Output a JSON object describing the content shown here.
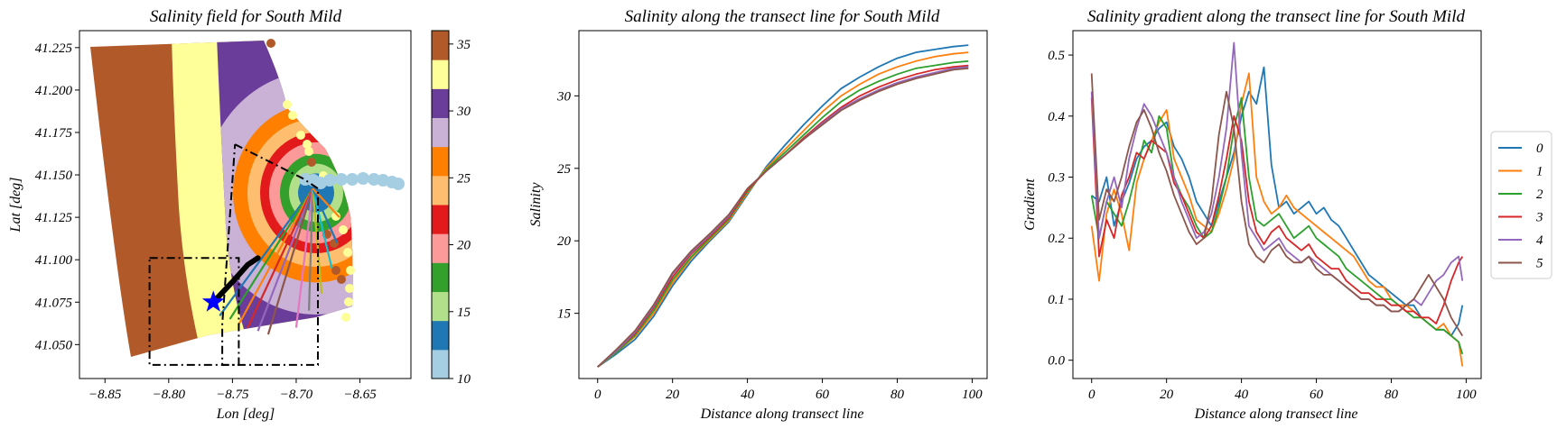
{
  "chart_data": [
    {
      "type": "scatter",
      "title": "Salinity field for South Mild",
      "xlabel": "Lon [deg]",
      "ylabel": "Lat [deg]",
      "xlim": [
        -8.87,
        -8.61
      ],
      "ylim": [
        41.03,
        41.235
      ],
      "xticks": [
        -8.85,
        -8.8,
        -8.75,
        -8.7,
        -8.65
      ],
      "xtick_labels": [
        "−8.85",
        "−8.80",
        "−8.75",
        "−8.70",
        "−8.65"
      ],
      "yticks": [
        41.05,
        41.075,
        41.1,
        41.125,
        41.15,
        41.175,
        41.2,
        41.225
      ],
      "ytick_labels": [
        "41.050",
        "41.075",
        "41.100",
        "41.125",
        "41.150",
        "41.175",
        "41.200",
        "41.225"
      ],
      "colorbar": {
        "range": [
          10,
          36
        ],
        "ticks": [
          10,
          15,
          20,
          25,
          30,
          35
        ],
        "tick_labels": [
          "10",
          "15",
          "20",
          "25",
          "30",
          "35"
        ],
        "colors": [
          "#a6cee3",
          "#1f78b4",
          "#b2df8a",
          "#33a02c",
          "#fb9a99",
          "#e31a1c",
          "#fdbf6f",
          "#ff7f00",
          "#cab2d6",
          "#6a3d9a",
          "#ffff99",
          "#b15928"
        ]
      },
      "star": {
        "lon": -8.765,
        "lat": 41.075,
        "color": "#0000ff"
      },
      "origin": {
        "lon": -8.687,
        "lat": 41.142
      },
      "transect_ends": [
        {
          "lon": -8.76,
          "lat": 41.067,
          "color": "#1f77b4"
        },
        {
          "lon": -8.752,
          "lat": 41.065,
          "color": "#2ca02c"
        },
        {
          "lon": -8.745,
          "lat": 41.062,
          "color": "#ff7f0e"
        },
        {
          "lon": -8.738,
          "lat": 41.06,
          "color": "#d62728"
        },
        {
          "lon": -8.73,
          "lat": 41.058,
          "color": "#9467bd"
        },
        {
          "lon": -8.722,
          "lat": 41.056,
          "color": "#8c564b"
        },
        {
          "lon": -8.7,
          "lat": 41.06,
          "color": "#e377c2"
        },
        {
          "lon": -8.69,
          "lat": 41.07,
          "color": "#7f7f7f"
        },
        {
          "lon": -8.68,
          "lat": 41.08,
          "color": "#bcbd22"
        },
        {
          "lon": -8.672,
          "lat": 41.095,
          "color": "#17becf"
        },
        {
          "lon": -8.668,
          "lat": 41.11,
          "color": "#1f77b4"
        },
        {
          "lon": -8.666,
          "lat": 41.125,
          "color": "#ff7f0e"
        }
      ],
      "track": [
        [
          -8.765,
          41.075
        ],
        [
          -8.75,
          41.087
        ],
        [
          -8.738,
          41.097
        ],
        [
          -8.73,
          41.101
        ]
      ],
      "boxes": [
        [
          [
            -8.815,
            41.101
          ],
          [
            -8.745,
            41.101
          ],
          [
            -8.745,
            41.038
          ],
          [
            -8.815,
            41.038
          ],
          [
            -8.815,
            41.101
          ]
        ],
        [
          [
            -8.748,
            41.168
          ],
          [
            -8.695,
            41.148
          ],
          [
            -8.683,
            41.142
          ],
          [
            -8.683,
            41.038
          ],
          [
            -8.758,
            41.038
          ],
          [
            -8.758,
            41.062
          ],
          [
            -8.748,
            41.168
          ]
        ]
      ]
    },
    {
      "type": "line",
      "title": "Salinity along the transect line for South Mild",
      "xlabel": "Distance along transect line",
      "ylabel": "Salinity",
      "xlim": [
        -5,
        104
      ],
      "ylim": [
        10.5,
        34.5
      ],
      "xticks": [
        0,
        20,
        40,
        60,
        80,
        100
      ],
      "yticks": [
        15,
        20,
        25,
        30
      ],
      "x": [
        0,
        5,
        10,
        15,
        20,
        25,
        30,
        35,
        40,
        45,
        50,
        55,
        60,
        65,
        70,
        75,
        80,
        85,
        90,
        95,
        99
      ],
      "series": [
        {
          "name": "0",
          "color": "#1f77b4",
          "values": [
            11.3,
            12.2,
            13.2,
            14.8,
            16.9,
            18.6,
            20.0,
            21.3,
            23.2,
            25.1,
            26.6,
            28.0,
            29.3,
            30.5,
            31.3,
            32.0,
            32.6,
            33.0,
            33.2,
            33.4,
            33.5
          ]
        },
        {
          "name": "1",
          "color": "#ff7f0e",
          "values": [
            11.3,
            12.3,
            13.4,
            15.0,
            17.1,
            18.8,
            20.1,
            21.4,
            23.3,
            25.0,
            26.3,
            27.6,
            28.9,
            30.0,
            30.8,
            31.5,
            32.0,
            32.4,
            32.7,
            32.9,
            33.0
          ]
        },
        {
          "name": "2",
          "color": "#2ca02c",
          "values": [
            11.3,
            12.3,
            13.5,
            15.2,
            17.3,
            18.9,
            20.2,
            21.5,
            23.4,
            24.9,
            26.1,
            27.3,
            28.5,
            29.6,
            30.4,
            31.0,
            31.5,
            31.9,
            32.1,
            32.3,
            32.4
          ]
        },
        {
          "name": "3",
          "color": "#d62728",
          "values": [
            11.3,
            12.4,
            13.6,
            15.4,
            17.5,
            19.1,
            20.3,
            21.6,
            23.5,
            24.8,
            25.9,
            27.1,
            28.2,
            29.2,
            30.0,
            30.6,
            31.1,
            31.5,
            31.8,
            32.0,
            32.1
          ]
        },
        {
          "name": "4",
          "color": "#9467bd",
          "values": [
            11.3,
            12.4,
            13.7,
            15.5,
            17.7,
            19.2,
            20.4,
            21.7,
            23.6,
            24.8,
            25.9,
            27.0,
            28.1,
            29.1,
            29.8,
            30.4,
            30.9,
            31.3,
            31.6,
            31.9,
            32.0
          ]
        },
        {
          "name": "5",
          "color": "#8c564b",
          "values": [
            11.3,
            12.5,
            13.8,
            15.6,
            17.8,
            19.3,
            20.5,
            21.8,
            23.6,
            24.8,
            25.9,
            27.0,
            28.0,
            29.0,
            29.7,
            30.3,
            30.8,
            31.2,
            31.5,
            31.8,
            31.9
          ]
        }
      ]
    },
    {
      "type": "line",
      "title": "Salinity gradient along the transect line for South Mild",
      "xlabel": "Distance along transect line",
      "ylabel": "Gradient",
      "xlim": [
        -5,
        104
      ],
      "ylim": [
        -0.03,
        0.54
      ],
      "xticks": [
        0,
        20,
        40,
        60,
        80,
        100
      ],
      "yticks": [
        0.0,
        0.1,
        0.2,
        0.3,
        0.4,
        0.5
      ],
      "ytick_labels": [
        "0.0",
        "0.1",
        "0.2",
        "0.3",
        "0.4",
        "0.5"
      ],
      "legend": {
        "placement": "right-outside"
      },
      "x": [
        0,
        2,
        4,
        6,
        8,
        10,
        12,
        14,
        16,
        18,
        20,
        22,
        24,
        26,
        28,
        30,
        32,
        34,
        36,
        38,
        40,
        42,
        44,
        46,
        48,
        50,
        52,
        54,
        56,
        58,
        60,
        62,
        64,
        66,
        68,
        70,
        72,
        74,
        76,
        78,
        80,
        82,
        84,
        86,
        88,
        90,
        92,
        94,
        96,
        98,
        99
      ],
      "series": [
        {
          "name": "0",
          "color": "#1f77b4",
          "values": [
            0.27,
            0.26,
            0.3,
            0.22,
            0.26,
            0.29,
            0.33,
            0.35,
            0.36,
            0.38,
            0.39,
            0.35,
            0.33,
            0.3,
            0.26,
            0.24,
            0.22,
            0.26,
            0.3,
            0.34,
            0.4,
            0.44,
            0.42,
            0.48,
            0.32,
            0.25,
            0.26,
            0.24,
            0.25,
            0.26,
            0.24,
            0.25,
            0.23,
            0.22,
            0.2,
            0.18,
            0.16,
            0.14,
            0.13,
            0.12,
            0.11,
            0.1,
            0.09,
            0.09,
            0.07,
            0.06,
            0.05,
            0.05,
            0.04,
            0.06,
            0.09
          ]
        },
        {
          "name": "1",
          "color": "#ff7f0e",
          "values": [
            0.22,
            0.13,
            0.24,
            0.28,
            0.24,
            0.18,
            0.29,
            0.33,
            0.36,
            0.39,
            0.41,
            0.33,
            0.3,
            0.27,
            0.23,
            0.22,
            0.21,
            0.24,
            0.28,
            0.33,
            0.42,
            0.47,
            0.3,
            0.26,
            0.24,
            0.25,
            0.27,
            0.25,
            0.24,
            0.23,
            0.22,
            0.21,
            0.2,
            0.19,
            0.18,
            0.17,
            0.15,
            0.13,
            0.12,
            0.12,
            0.1,
            0.09,
            0.09,
            0.08,
            0.07,
            0.06,
            0.05,
            0.06,
            0.04,
            0.03,
            -0.01
          ]
        },
        {
          "name": "2",
          "color": "#2ca02c",
          "values": [
            0.27,
            0.2,
            0.26,
            0.24,
            0.22,
            0.26,
            0.31,
            0.36,
            0.34,
            0.4,
            0.38,
            0.3,
            0.27,
            0.25,
            0.22,
            0.2,
            0.21,
            0.25,
            0.3,
            0.38,
            0.43,
            0.3,
            0.23,
            0.22,
            0.23,
            0.24,
            0.22,
            0.2,
            0.21,
            0.22,
            0.2,
            0.19,
            0.18,
            0.17,
            0.15,
            0.14,
            0.13,
            0.12,
            0.11,
            0.1,
            0.1,
            0.09,
            0.08,
            0.07,
            0.07,
            0.06,
            0.05,
            0.05,
            0.04,
            0.03,
            0.01
          ]
        },
        {
          "name": "3",
          "color": "#d62728",
          "values": [
            0.43,
            0.17,
            0.23,
            0.2,
            0.27,
            0.3,
            0.34,
            0.33,
            0.36,
            0.35,
            0.34,
            0.29,
            0.27,
            0.24,
            0.21,
            0.2,
            0.22,
            0.27,
            0.33,
            0.4,
            0.36,
            0.26,
            0.21,
            0.19,
            0.21,
            0.22,
            0.2,
            0.19,
            0.18,
            0.19,
            0.17,
            0.16,
            0.15,
            0.15,
            0.13,
            0.12,
            0.11,
            0.11,
            0.1,
            0.1,
            0.09,
            0.09,
            0.08,
            0.08,
            0.07,
            0.07,
            0.06,
            0.09,
            0.13,
            0.16,
            0.17
          ]
        },
        {
          "name": "4",
          "color": "#9467bd",
          "values": [
            0.44,
            0.2,
            0.26,
            0.3,
            0.25,
            0.33,
            0.38,
            0.42,
            0.4,
            0.37,
            0.34,
            0.3,
            0.26,
            0.23,
            0.2,
            0.21,
            0.24,
            0.3,
            0.38,
            0.52,
            0.34,
            0.22,
            0.2,
            0.18,
            0.19,
            0.2,
            0.18,
            0.17,
            0.16,
            0.17,
            0.16,
            0.15,
            0.14,
            0.13,
            0.12,
            0.11,
            0.1,
            0.1,
            0.09,
            0.09,
            0.08,
            0.08,
            0.09,
            0.1,
            0.09,
            0.11,
            0.13,
            0.14,
            0.16,
            0.17,
            0.13
          ]
        },
        {
          "name": "5",
          "color": "#8c564b",
          "values": [
            0.47,
            0.23,
            0.28,
            0.26,
            0.3,
            0.35,
            0.39,
            0.41,
            0.38,
            0.34,
            0.31,
            0.27,
            0.24,
            0.21,
            0.19,
            0.2,
            0.26,
            0.37,
            0.44,
            0.38,
            0.26,
            0.19,
            0.17,
            0.16,
            0.18,
            0.19,
            0.17,
            0.16,
            0.16,
            0.17,
            0.15,
            0.14,
            0.14,
            0.13,
            0.12,
            0.11,
            0.1,
            0.1,
            0.09,
            0.09,
            0.08,
            0.08,
            0.09,
            0.1,
            0.12,
            0.14,
            0.12,
            0.1,
            0.07,
            0.05,
            0.04
          ]
        }
      ]
    }
  ]
}
